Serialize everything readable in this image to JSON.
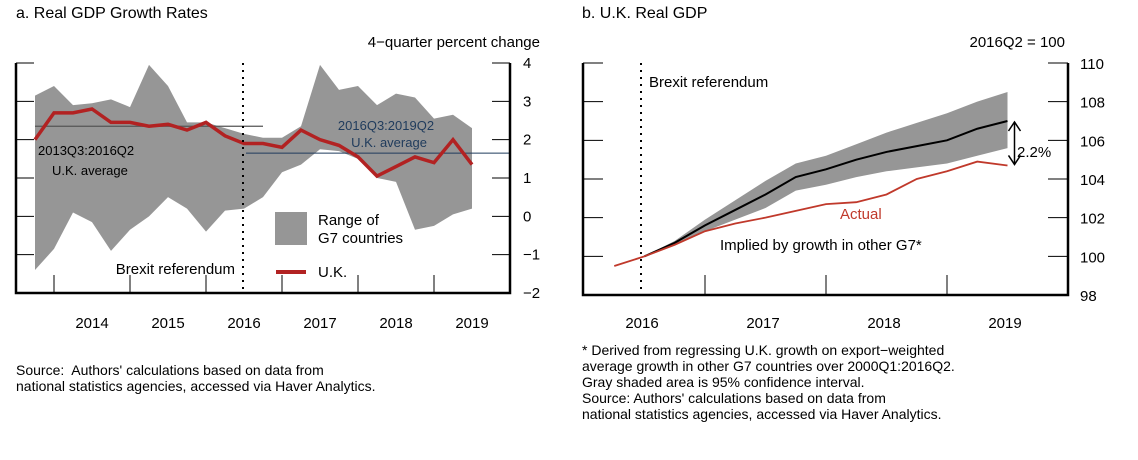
{
  "colors": {
    "range": "#969696",
    "uk": "#B22222",
    "actual": "#C0392B",
    "avg2": "#1F3B5C",
    "implied": "#000000",
    "avg1": "#555555"
  },
  "chart_data": [
    {
      "type": "area",
      "title": "a. Real GDP Growth Rates",
      "ylabel": "4−quarter percent change",
      "xlabel": "",
      "ylim": [
        -2,
        4
      ],
      "xlim": [
        2013.5,
        2020.0
      ],
      "yticks": [
        4,
        3,
        2,
        1,
        0,
        -1,
        -2
      ],
      "ytick_labels": [
        "4",
        "3",
        "2",
        "1",
        "0",
        "−1",
        "−2"
      ],
      "xtick_labels": [
        "2014",
        "2015",
        "2016",
        "2017",
        "2018",
        "2019"
      ],
      "grid": false,
      "legend_position": "bottom-center",
      "legend": [
        "Range of G7 countries",
        "U.K."
      ],
      "x": [
        "2013Q3",
        "2013Q4",
        "2014Q1",
        "2014Q2",
        "2014Q3",
        "2014Q4",
        "2015Q1",
        "2015Q2",
        "2015Q3",
        "2015Q4",
        "2016Q1",
        "2016Q2",
        "2016Q3",
        "2016Q4",
        "2017Q1",
        "2017Q2",
        "2017Q3",
        "2017Q4",
        "2018Q1",
        "2018Q2",
        "2018Q3",
        "2018Q4",
        "2019Q1",
        "2019Q2"
      ],
      "series": [
        {
          "name": "Range of G7 countries (max)",
          "values": [
            3.15,
            3.4,
            2.9,
            2.95,
            3.05,
            2.85,
            3.95,
            3.4,
            2.45,
            2.45,
            2.3,
            2.15,
            2.05,
            2.05,
            2.35,
            3.95,
            3.3,
            3.4,
            2.9,
            3.2,
            3.1,
            2.55,
            2.65,
            2.3
          ]
        },
        {
          "name": "Range of G7 countries (min)",
          "values": [
            -1.4,
            -0.85,
            0.1,
            -0.15,
            -0.9,
            -0.35,
            0.0,
            0.5,
            0.2,
            -0.4,
            0.15,
            0.2,
            0.5,
            1.15,
            1.35,
            1.75,
            1.7,
            1.5,
            1.0,
            0.9,
            -0.35,
            -0.25,
            0.05,
            0.2
          ]
        },
        {
          "name": "U.K.",
          "values": [
            2.0,
            2.7,
            2.7,
            2.8,
            2.45,
            2.45,
            2.35,
            2.4,
            2.25,
            2.45,
            2.1,
            1.9,
            1.9,
            1.8,
            2.25,
            2.0,
            1.85,
            1.55,
            1.05,
            1.3,
            1.55,
            1.4,
            2.0,
            1.35
          ]
        }
      ],
      "reference_lines": [
        {
          "label": "2013Q3:2016Q2 U.K. average",
          "label_line1": "2013Q3:2016Q2",
          "label_line2": "U.K. average",
          "value": 2.35,
          "from": "2013Q3",
          "to": "2016Q2"
        },
        {
          "label": "2016Q3:2019Q2 U.K. average",
          "label_line1": "2016Q3:2019Q2",
          "label_line2": "U.K. average",
          "value": 1.65,
          "from": "2016Q3",
          "to": "2019Q2"
        }
      ],
      "annotations": [
        {
          "text": "Brexit referendum",
          "x": "2016Q2 (end)"
        }
      ],
      "source": "Source:  Authors' calculations based on data from\nnational statistics agencies, accessed via Haver Analytics."
    },
    {
      "type": "line",
      "title": "b. U.K. Real GDP",
      "ylabel": "2016Q2 = 100",
      "xlabel": "",
      "ylim": [
        98,
        110
      ],
      "xlim": [
        2016.0,
        2020.0
      ],
      "yticks": [
        110,
        108,
        106,
        104,
        102,
        100,
        98
      ],
      "ytick_labels": [
        "110",
        "108",
        "106",
        "104",
        "102",
        "100",
        "98"
      ],
      "xtick_labels": [
        "2016",
        "2017",
        "2018",
        "2019"
      ],
      "grid": false,
      "x": [
        "2016Q1",
        "2016Q2",
        "2016Q3",
        "2016Q4",
        "2017Q1",
        "2017Q2",
        "2017Q3",
        "2017Q4",
        "2018Q1",
        "2018Q2",
        "2018Q3",
        "2018Q4",
        "2019Q1",
        "2019Q2"
      ],
      "series": [
        {
          "name": "Actual",
          "values": [
            99.5,
            100.0,
            100.6,
            101.3,
            101.7,
            102.0,
            102.35,
            102.7,
            102.8,
            103.2,
            104.0,
            104.4,
            104.9,
            104.7
          ]
        },
        {
          "name": "Implied by growth in other G7*",
          "values": [
            null,
            100.0,
            100.7,
            101.6,
            102.4,
            103.2,
            104.1,
            104.5,
            105.0,
            105.4,
            105.7,
            106.0,
            106.6,
            107.0
          ]
        },
        {
          "name": "95% confidence interval (upper)",
          "values": [
            null,
            100.0,
            100.8,
            101.9,
            102.9,
            103.9,
            104.8,
            105.2,
            105.8,
            106.4,
            106.9,
            107.4,
            108.0,
            108.5
          ]
        },
        {
          "name": "95% confidence interval (lower)",
          "values": [
            null,
            100.0,
            100.6,
            101.3,
            101.9,
            102.5,
            103.4,
            103.7,
            104.1,
            104.4,
            104.6,
            104.8,
            105.2,
            105.6
          ]
        }
      ],
      "annotations": [
        {
          "text": "Brexit referendum",
          "x": "2016Q2"
        },
        {
          "text": "Actual"
        },
        {
          "text": "Implied by growth in other G7*"
        },
        {
          "text": "2.2%",
          "kind": "gap-arrow",
          "at": "2019Q2"
        }
      ],
      "source": "* Derived from regressing U.K. growth on export−weighted\naverage growth in other G7 countries over 2000Q1:2016Q2.\nGray shaded area is 95% confidence interval.\nSource: Authors' calculations based on data from\nnational statistics agencies, accessed via Haver Analytics."
    }
  ]
}
